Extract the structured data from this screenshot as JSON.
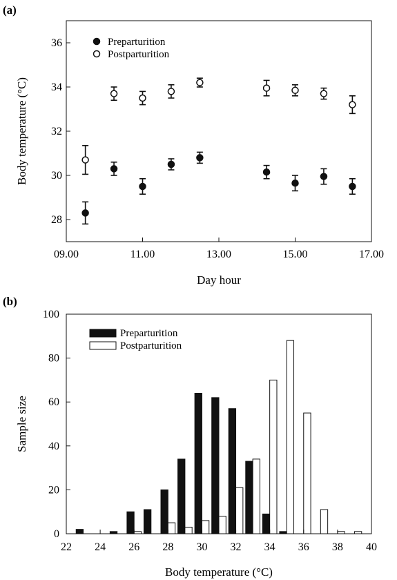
{
  "chart_data": [
    {
      "panel_label": "(a)",
      "type": "scatter",
      "xlabel": "Day hour",
      "ylabel": "Body temperature (°C)",
      "xlim": [
        9,
        17
      ],
      "ylim": [
        27,
        37
      ],
      "x_ticks": [
        9,
        11,
        13,
        15,
        17
      ],
      "x_tick_labels": [
        "09.00",
        "11.00",
        "13.00",
        "15.00",
        "17.00"
      ],
      "y_ticks": [
        28,
        30,
        32,
        34,
        36
      ],
      "y_tick_labels": [
        "28",
        "30",
        "32",
        "34",
        "36"
      ],
      "legend": "top-left",
      "grid": false,
      "series": [
        {
          "name": "Preparturition",
          "marker": "filled-circle",
          "x": [
            9.5,
            10.25,
            11.0,
            11.75,
            12.5,
            14.25,
            15.0,
            15.75,
            16.5
          ],
          "y": [
            28.3,
            30.3,
            29.5,
            30.5,
            30.8,
            30.15,
            29.65,
            29.95,
            29.5
          ],
          "err": [
            0.5,
            0.3,
            0.35,
            0.25,
            0.25,
            0.3,
            0.35,
            0.35,
            0.35
          ]
        },
        {
          "name": "Postparturition",
          "marker": "open-circle",
          "x": [
            9.5,
            10.25,
            11.0,
            11.75,
            12.5,
            14.25,
            15.0,
            15.75,
            16.5
          ],
          "y": [
            30.7,
            33.7,
            33.5,
            33.8,
            34.2,
            33.95,
            33.85,
            33.7,
            33.2
          ],
          "err": [
            0.65,
            0.3,
            0.3,
            0.3,
            0.2,
            0.35,
            0.25,
            0.25,
            0.4
          ]
        }
      ]
    },
    {
      "panel_label": "(b)",
      "type": "bar",
      "xlabel": "Body temperature (°C)",
      "ylabel": "Sample size",
      "xlim": [
        22,
        40
      ],
      "ylim": [
        0,
        100
      ],
      "x_ticks": [
        22,
        24,
        26,
        28,
        30,
        32,
        34,
        36,
        38,
        40
      ],
      "x_tick_labels": [
        "22",
        "24",
        "26",
        "28",
        "30",
        "32",
        "34",
        "36",
        "38",
        "40"
      ],
      "y_ticks": [
        0,
        20,
        40,
        60,
        80,
        100
      ],
      "y_tick_labels": [
        "0",
        "20",
        "40",
        "60",
        "80",
        "100"
      ],
      "legend": "top-left",
      "grid": false,
      "categories": [
        23,
        24,
        25,
        26,
        27,
        28,
        29,
        30,
        31,
        32,
        33,
        34,
        35,
        36,
        37,
        38,
        39
      ],
      "series": [
        {
          "name": "Preparturition",
          "fill": "#111111",
          "values": [
            2,
            0,
            1,
            10,
            11,
            20,
            34,
            64,
            62,
            57,
            33,
            9,
            1,
            0,
            0,
            0,
            0
          ]
        },
        {
          "name": "Postparturition",
          "fill": "#ffffff",
          "values": [
            0,
            0,
            0,
            1,
            0,
            5,
            3,
            6,
            8,
            21,
            34,
            70,
            88,
            55,
            11,
            1,
            1
          ]
        }
      ]
    }
  ]
}
